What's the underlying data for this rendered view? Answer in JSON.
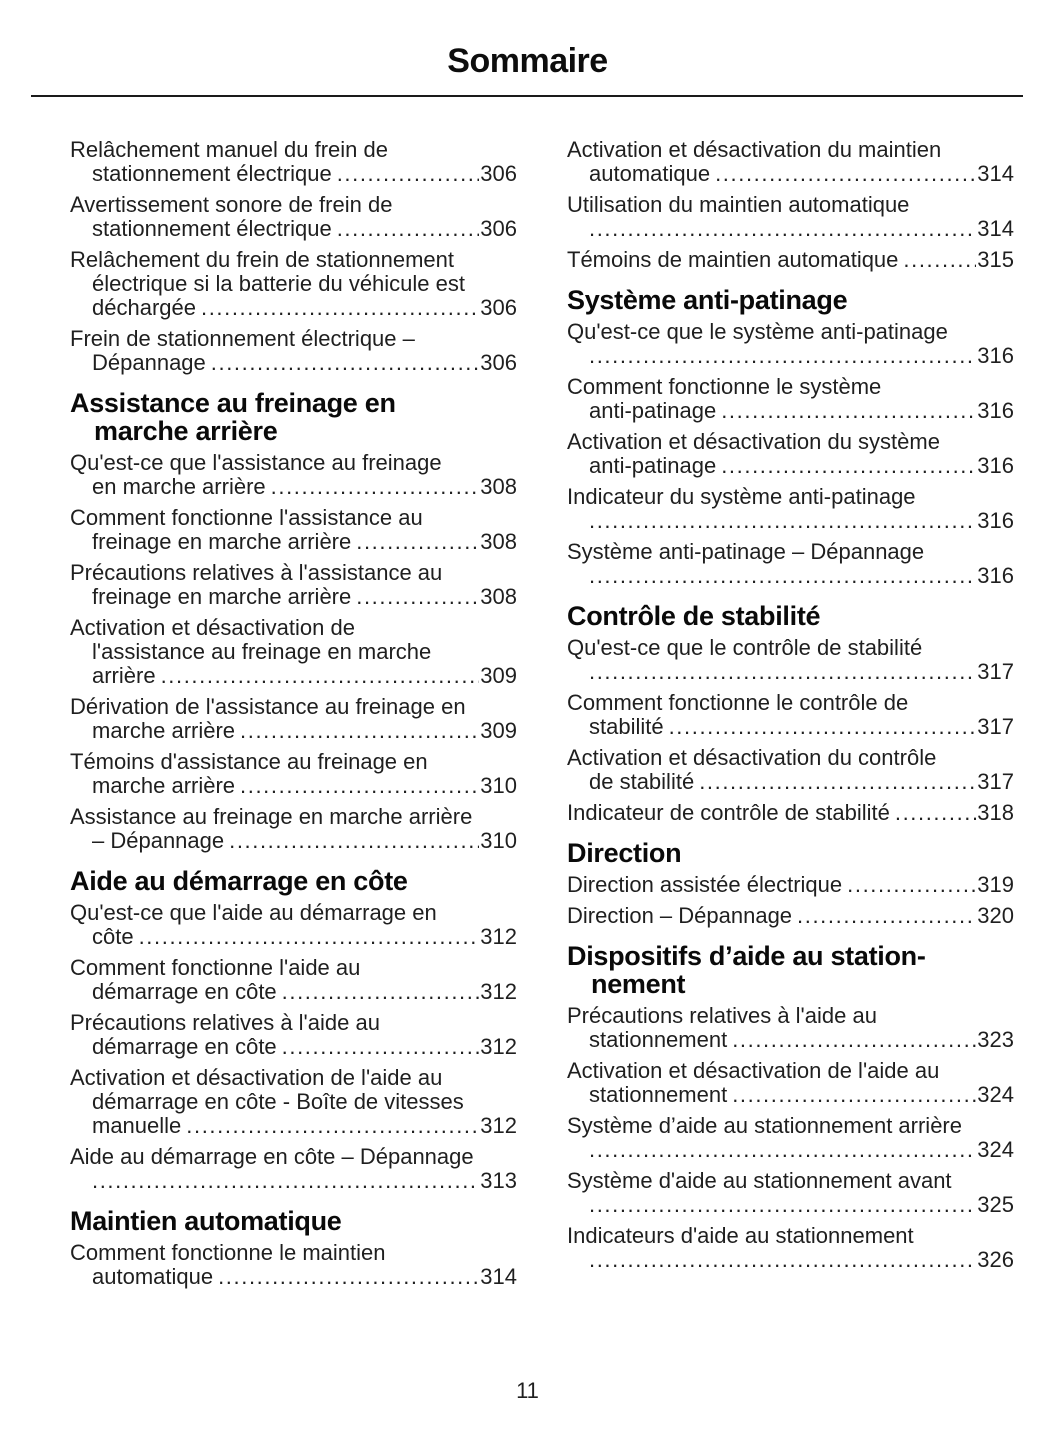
{
  "page": {
    "title": "Sommaire",
    "page_number": "11"
  },
  "colors": {
    "text": "#1f1f1f",
    "heading": "#0a0a0a",
    "background": "#ffffff"
  },
  "columns": [
    {
      "blocks": [
        {
          "heading": null,
          "entries": [
            {
              "pre": [
                "Relâchement manuel du frein de"
              ],
              "end": "stationnement électrique",
              "page": "306"
            },
            {
              "pre": [
                "Avertissement sonore de frein de"
              ],
              "end": "stationnement électrique",
              "page": "306"
            },
            {
              "pre": [
                "Relâchement du frein de stationnement",
                "électrique si la batterie du véhicule est"
              ],
              "end": "déchargée",
              "page": "306"
            },
            {
              "pre": [
                "Frein de stationnement électrique –"
              ],
              "end": "Dépannage",
              "page": "306"
            }
          ]
        },
        {
          "heading": [
            "Assistance au freinage en",
            "marche arrière"
          ],
          "entries": [
            {
              "pre": [
                "Qu'est-ce que l'assistance au freinage"
              ],
              "end": "en marche arrière",
              "page": "308"
            },
            {
              "pre": [
                "Comment fonctionne l'assistance au"
              ],
              "end": "freinage en marche arrière",
              "page": "308"
            },
            {
              "pre": [
                "Précautions relatives à l'assistance au"
              ],
              "end": "freinage en marche arrière",
              "page": "308"
            },
            {
              "pre": [
                "Activation et désactivation de",
                "l'assistance au freinage en marche"
              ],
              "end": "arrière",
              "page": "309"
            },
            {
              "pre": [
                "Dérivation de l'assistance au freinage en"
              ],
              "end": "marche arrière",
              "page": "309"
            },
            {
              "pre": [
                "Témoins d'assistance au freinage en"
              ],
              "end": "marche arrière",
              "page": "310"
            },
            {
              "pre": [
                "Assistance au freinage en marche arrière"
              ],
              "end": "– Dépannage",
              "page": "310"
            }
          ]
        },
        {
          "heading": [
            "Aide au démarrage en côte"
          ],
          "entries": [
            {
              "pre": [
                "Qu'est-ce que l'aide au démarrage en"
              ],
              "end": "côte",
              "page": "312"
            },
            {
              "pre": [
                "Comment fonctionne l'aide au"
              ],
              "end": "démarrage en côte",
              "page": "312"
            },
            {
              "pre": [
                "Précautions relatives à l'aide au"
              ],
              "end": "démarrage en côte",
              "page": "312"
            },
            {
              "pre": [
                "Activation et désactivation de l'aide au",
                "démarrage en côte - Boîte de vitesses"
              ],
              "end": "manuelle",
              "page": "312"
            },
            {
              "pre": [
                "Aide au démarrage en côte – Dépannage"
              ],
              "end": "",
              "page": "313"
            }
          ]
        },
        {
          "heading": [
            "Maintien automatique"
          ],
          "entries": [
            {
              "pre": [
                "Comment fonctionne le maintien"
              ],
              "end": "automatique",
              "page": "314"
            }
          ]
        }
      ]
    },
    {
      "blocks": [
        {
          "heading": null,
          "entries": [
            {
              "pre": [
                "Activation et désactivation du maintien"
              ],
              "end": "automatique",
              "page": "314"
            },
            {
              "pre": [
                "Utilisation du maintien automatique"
              ],
              "end": "",
              "page": "314"
            },
            {
              "pre": [],
              "end": "Témoins de maintien automatique",
              "page": "315"
            }
          ]
        },
        {
          "heading": [
            "Système anti-patinage"
          ],
          "entries": [
            {
              "pre": [
                "Qu'est-ce que le système anti-patinage"
              ],
              "end": "",
              "page": "316"
            },
            {
              "pre": [
                "Comment fonctionne le système"
              ],
              "end": "anti-patinage",
              "page": "316"
            },
            {
              "pre": [
                "Activation et désactivation du système"
              ],
              "end": "anti-patinage",
              "page": "316"
            },
            {
              "pre": [
                "Indicateur du système anti-patinage"
              ],
              "end": "",
              "page": "316"
            },
            {
              "pre": [
                "Système anti-patinage – Dépannage"
              ],
              "end": "",
              "page": "316"
            }
          ]
        },
        {
          "heading": [
            "Contrôle de stabilité"
          ],
          "entries": [
            {
              "pre": [
                "Qu'est-ce que le contrôle de stabilité"
              ],
              "end": "",
              "page": "317"
            },
            {
              "pre": [
                "Comment fonctionne le contrôle de"
              ],
              "end": "stabilité",
              "page": "317"
            },
            {
              "pre": [
                "Activation et désactivation du contrôle"
              ],
              "end": "de stabilité",
              "page": "317"
            },
            {
              "pre": [],
              "end": "Indicateur de contrôle de stabilité",
              "page": "318"
            }
          ]
        },
        {
          "heading": [
            "Direction"
          ],
          "entries": [
            {
              "pre": [],
              "end": "Direction assistée électrique",
              "page": "319"
            },
            {
              "pre": [],
              "end": "Direction – Dépannage",
              "page": "320"
            }
          ]
        },
        {
          "heading": [
            "Dispositifs d’aide au station-",
            "nement"
          ],
          "entries": [
            {
              "pre": [
                "Précautions relatives à l'aide au"
              ],
              "end": "stationnement",
              "page": "323"
            },
            {
              "pre": [
                "Activation et désactivation de l'aide au"
              ],
              "end": "stationnement",
              "page": "324"
            },
            {
              "pre": [
                "Système d’aide au stationnement arrière"
              ],
              "end": "",
              "page": "324"
            },
            {
              "pre": [
                "Système d'aide au stationnement avant"
              ],
              "end": "",
              "page": "325"
            },
            {
              "pre": [
                "Indicateurs d'aide au stationnement"
              ],
              "end": "",
              "page": "326"
            }
          ]
        }
      ]
    }
  ]
}
